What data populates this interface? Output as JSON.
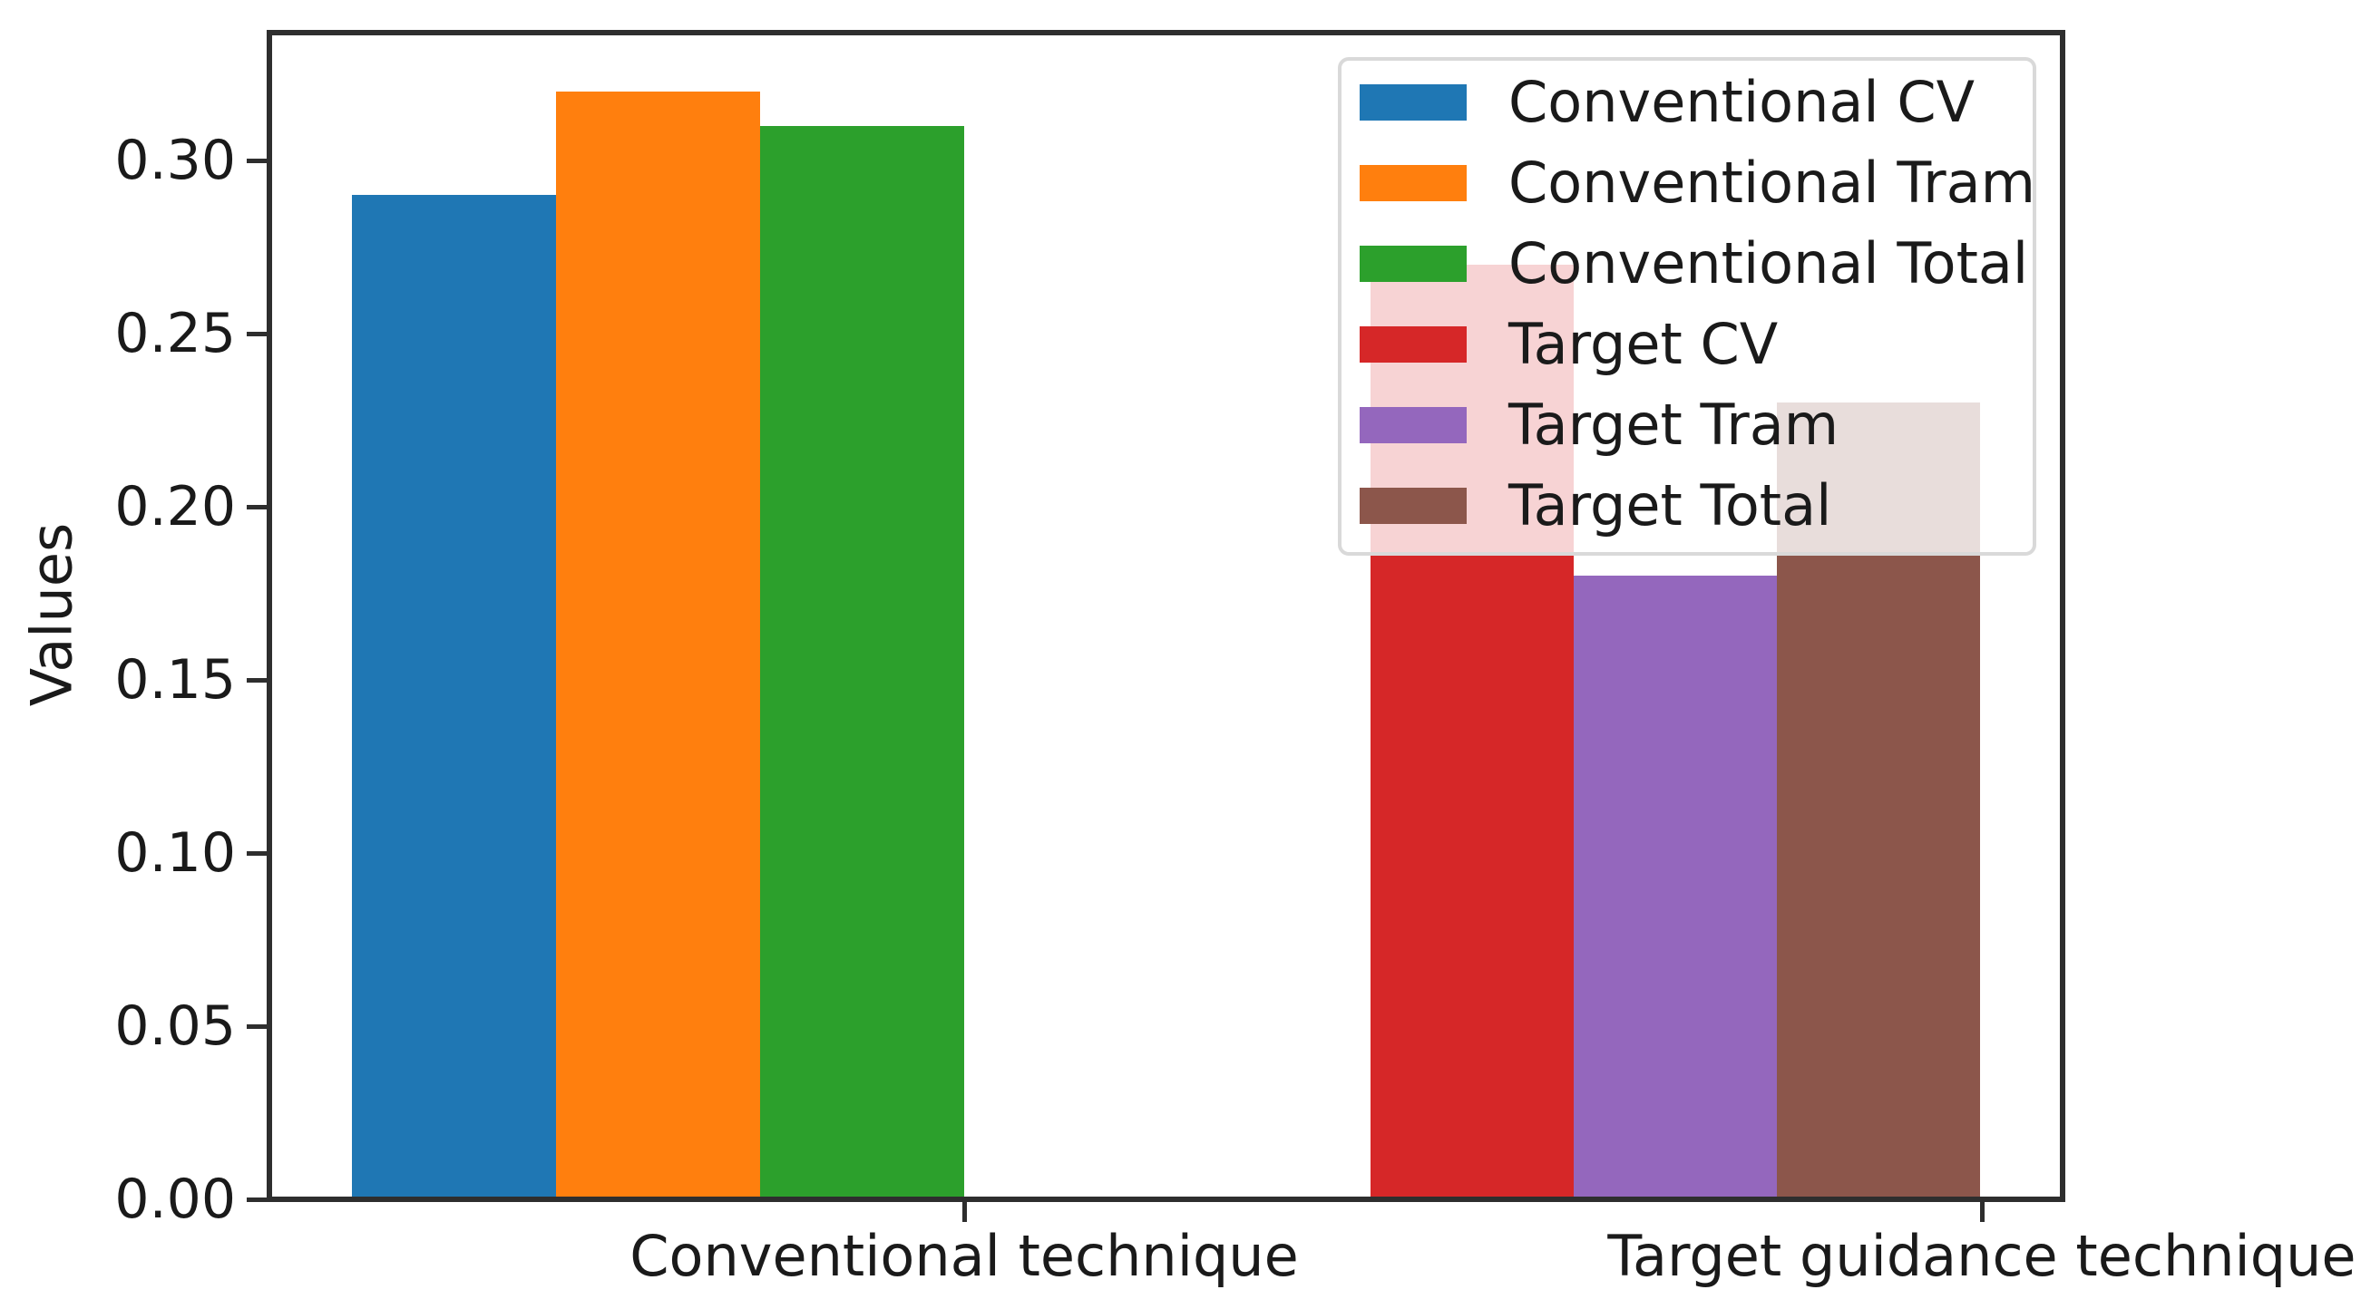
{
  "chart_data": {
    "type": "bar",
    "title": "",
    "xlabel": "",
    "ylabel": "Values",
    "categories": [
      "Conventional technique",
      "Target guidance technique"
    ],
    "series": [
      {
        "name": "Conventional CV",
        "group": 0,
        "value": 0.29,
        "color": "#1f77b4"
      },
      {
        "name": "Conventional Tram",
        "group": 0,
        "value": 0.32,
        "color": "#ff7f0e"
      },
      {
        "name": "Conventional Total",
        "group": 0,
        "value": 0.31,
        "color": "#2ca02c"
      },
      {
        "name": "Target CV",
        "group": 1,
        "value": 0.27,
        "color": "#d62728"
      },
      {
        "name": "Target Tram",
        "group": 1,
        "value": 0.18,
        "color": "#9467bd"
      },
      {
        "name": "Target Total",
        "group": 1,
        "value": 0.23,
        "color": "#8c564b"
      }
    ],
    "yticks": [
      {
        "label": "0.00",
        "value": 0.0
      },
      {
        "label": "0.05",
        "value": 0.05
      },
      {
        "label": "0.10",
        "value": 0.1
      },
      {
        "label": "0.15",
        "value": 0.15
      },
      {
        "label": "0.20",
        "value": 0.2
      },
      {
        "label": "0.25",
        "value": 0.25
      },
      {
        "label": "0.30",
        "value": 0.3
      }
    ],
    "ylim": [
      0,
      0.339
    ],
    "grid": false,
    "legend_position": "upper right"
  },
  "colors": {
    "background": "#ffffff",
    "spine": "#2e2e2e",
    "text": "#1a1a1a",
    "legend_border": "#d9d9d9"
  }
}
